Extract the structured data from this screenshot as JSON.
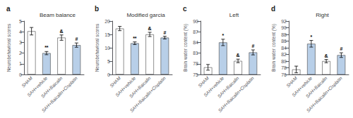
{
  "chart_data": [
    {
      "type": "bar",
      "label": "a",
      "title": "Beam balance",
      "ylabel": "Neurobehavioral scores",
      "categories": [
        "SHAM",
        "SAH+vehicle",
        "SAH+Baicalin",
        "SAH+Baicalin+Cisplatin"
      ],
      "values": [
        4.05,
        2.0,
        3.45,
        2.75
      ],
      "errors": [
        0.35,
        0.15,
        0.25,
        0.2
      ],
      "colors": [
        "white",
        "#b8cfe8",
        "white",
        "#b8cfe8"
      ],
      "annotations": [
        null,
        "**",
        "&",
        "#"
      ],
      "ylim": [
        0,
        5
      ],
      "yticks": [
        0,
        1,
        2,
        3,
        4,
        5
      ],
      "grid": false
    },
    {
      "type": "bar",
      "label": "b",
      "title": "Modified garcia",
      "ylabel": "Neurobehavioral scores",
      "categories": [
        "SHAM",
        "SAH+vehicle",
        "SAH+Baicalin",
        "SAH+Baicalin+Cisplatin"
      ],
      "values": [
        17.2,
        11.7,
        15.0,
        13.8
      ],
      "errors": [
        0.8,
        0.5,
        0.8,
        0.5
      ],
      "colors": [
        "white",
        "#b8cfe8",
        "white",
        "#b8cfe8"
      ],
      "annotations": [
        null,
        "**",
        "&",
        "#"
      ],
      "ylim": [
        0,
        20
      ],
      "yticks": [
        0,
        5,
        10,
        15,
        20
      ],
      "grid": false
    },
    {
      "type": "bar",
      "label": "c",
      "title": "Left",
      "ylabel": "Brain water content (%)",
      "categories": [
        "SHAM",
        "SAH+vehicle",
        "SAH+Baicalin",
        "SAH+Baicalin+Cisplatin"
      ],
      "values": [
        77.0,
        84.0,
        78.8,
        81.2
      ],
      "errors": [
        0.8,
        0.9,
        0.5,
        0.7
      ],
      "colors": [
        "white",
        "#b8cfe8",
        "white",
        "#b8cfe8"
      ],
      "annotations": [
        null,
        "*",
        "&",
        "#"
      ],
      "ylim": [
        75,
        90
      ],
      "yticks": [
        75,
        78,
        81,
        84,
        87,
        90
      ],
      "grid": false
    },
    {
      "type": "bar",
      "label": "d",
      "title": "Right",
      "ylabel": "Brain water content (%)",
      "categories": [
        "SHAM",
        "SAH+vehicle",
        "SAH+Baicalin",
        "SAH+Baicalin+Cisplatin"
      ],
      "values": [
        77.5,
        85.2,
        80.0,
        81.8
      ],
      "errors": [
        1.0,
        1.0,
        0.5,
        0.7
      ],
      "colors": [
        "white",
        "#b8cfe8",
        "white",
        "#b8cfe8"
      ],
      "annotations": [
        null,
        "*",
        "&",
        "#"
      ],
      "ylim": [
        76,
        92
      ],
      "yticks": [
        76,
        78,
        80,
        82,
        84,
        86,
        88,
        90,
        92
      ],
      "grid": false
    }
  ]
}
